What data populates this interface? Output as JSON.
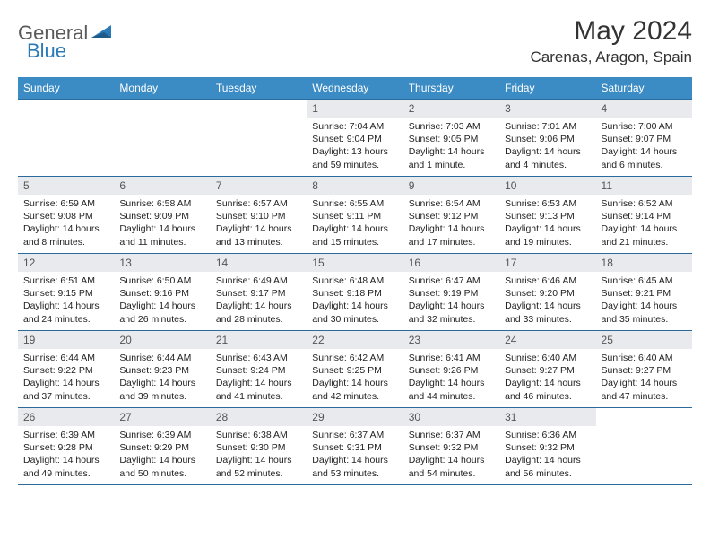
{
  "logo": {
    "part1": "General",
    "part2": "Blue"
  },
  "title": "May 2024",
  "location": "Carenas, Aragon, Spain",
  "weekdays": [
    "Sunday",
    "Monday",
    "Tuesday",
    "Wednesday",
    "Thursday",
    "Friday",
    "Saturday"
  ],
  "colors": {
    "header_bg": "#3b8bc4",
    "header_text": "#ffffff",
    "daynum_bg": "#e8eaed",
    "border": "#2a6a9c",
    "logo_gray": "#5a5a5a",
    "logo_blue": "#2a7ab8"
  },
  "weeks": [
    [
      null,
      null,
      null,
      {
        "n": "1",
        "sunrise": "7:04 AM",
        "sunset": "9:04 PM",
        "daylight": "13 hours and 59 minutes."
      },
      {
        "n": "2",
        "sunrise": "7:03 AM",
        "sunset": "9:05 PM",
        "daylight": "14 hours and 1 minute."
      },
      {
        "n": "3",
        "sunrise": "7:01 AM",
        "sunset": "9:06 PM",
        "daylight": "14 hours and 4 minutes."
      },
      {
        "n": "4",
        "sunrise": "7:00 AM",
        "sunset": "9:07 PM",
        "daylight": "14 hours and 6 minutes."
      }
    ],
    [
      {
        "n": "5",
        "sunrise": "6:59 AM",
        "sunset": "9:08 PM",
        "daylight": "14 hours and 8 minutes."
      },
      {
        "n": "6",
        "sunrise": "6:58 AM",
        "sunset": "9:09 PM",
        "daylight": "14 hours and 11 minutes."
      },
      {
        "n": "7",
        "sunrise": "6:57 AM",
        "sunset": "9:10 PM",
        "daylight": "14 hours and 13 minutes."
      },
      {
        "n": "8",
        "sunrise": "6:55 AM",
        "sunset": "9:11 PM",
        "daylight": "14 hours and 15 minutes."
      },
      {
        "n": "9",
        "sunrise": "6:54 AM",
        "sunset": "9:12 PM",
        "daylight": "14 hours and 17 minutes."
      },
      {
        "n": "10",
        "sunrise": "6:53 AM",
        "sunset": "9:13 PM",
        "daylight": "14 hours and 19 minutes."
      },
      {
        "n": "11",
        "sunrise": "6:52 AM",
        "sunset": "9:14 PM",
        "daylight": "14 hours and 21 minutes."
      }
    ],
    [
      {
        "n": "12",
        "sunrise": "6:51 AM",
        "sunset": "9:15 PM",
        "daylight": "14 hours and 24 minutes."
      },
      {
        "n": "13",
        "sunrise": "6:50 AM",
        "sunset": "9:16 PM",
        "daylight": "14 hours and 26 minutes."
      },
      {
        "n": "14",
        "sunrise": "6:49 AM",
        "sunset": "9:17 PM",
        "daylight": "14 hours and 28 minutes."
      },
      {
        "n": "15",
        "sunrise": "6:48 AM",
        "sunset": "9:18 PM",
        "daylight": "14 hours and 30 minutes."
      },
      {
        "n": "16",
        "sunrise": "6:47 AM",
        "sunset": "9:19 PM",
        "daylight": "14 hours and 32 minutes."
      },
      {
        "n": "17",
        "sunrise": "6:46 AM",
        "sunset": "9:20 PM",
        "daylight": "14 hours and 33 minutes."
      },
      {
        "n": "18",
        "sunrise": "6:45 AM",
        "sunset": "9:21 PM",
        "daylight": "14 hours and 35 minutes."
      }
    ],
    [
      {
        "n": "19",
        "sunrise": "6:44 AM",
        "sunset": "9:22 PM",
        "daylight": "14 hours and 37 minutes."
      },
      {
        "n": "20",
        "sunrise": "6:44 AM",
        "sunset": "9:23 PM",
        "daylight": "14 hours and 39 minutes."
      },
      {
        "n": "21",
        "sunrise": "6:43 AM",
        "sunset": "9:24 PM",
        "daylight": "14 hours and 41 minutes."
      },
      {
        "n": "22",
        "sunrise": "6:42 AM",
        "sunset": "9:25 PM",
        "daylight": "14 hours and 42 minutes."
      },
      {
        "n": "23",
        "sunrise": "6:41 AM",
        "sunset": "9:26 PM",
        "daylight": "14 hours and 44 minutes."
      },
      {
        "n": "24",
        "sunrise": "6:40 AM",
        "sunset": "9:27 PM",
        "daylight": "14 hours and 46 minutes."
      },
      {
        "n": "25",
        "sunrise": "6:40 AM",
        "sunset": "9:27 PM",
        "daylight": "14 hours and 47 minutes."
      }
    ],
    [
      {
        "n": "26",
        "sunrise": "6:39 AM",
        "sunset": "9:28 PM",
        "daylight": "14 hours and 49 minutes."
      },
      {
        "n": "27",
        "sunrise": "6:39 AM",
        "sunset": "9:29 PM",
        "daylight": "14 hours and 50 minutes."
      },
      {
        "n": "28",
        "sunrise": "6:38 AM",
        "sunset": "9:30 PM",
        "daylight": "14 hours and 52 minutes."
      },
      {
        "n": "29",
        "sunrise": "6:37 AM",
        "sunset": "9:31 PM",
        "daylight": "14 hours and 53 minutes."
      },
      {
        "n": "30",
        "sunrise": "6:37 AM",
        "sunset": "9:32 PM",
        "daylight": "14 hours and 54 minutes."
      },
      {
        "n": "31",
        "sunrise": "6:36 AM",
        "sunset": "9:32 PM",
        "daylight": "14 hours and 56 minutes."
      },
      null
    ]
  ],
  "labels": {
    "sunrise": "Sunrise:",
    "sunset": "Sunset:",
    "daylight": "Daylight:"
  }
}
